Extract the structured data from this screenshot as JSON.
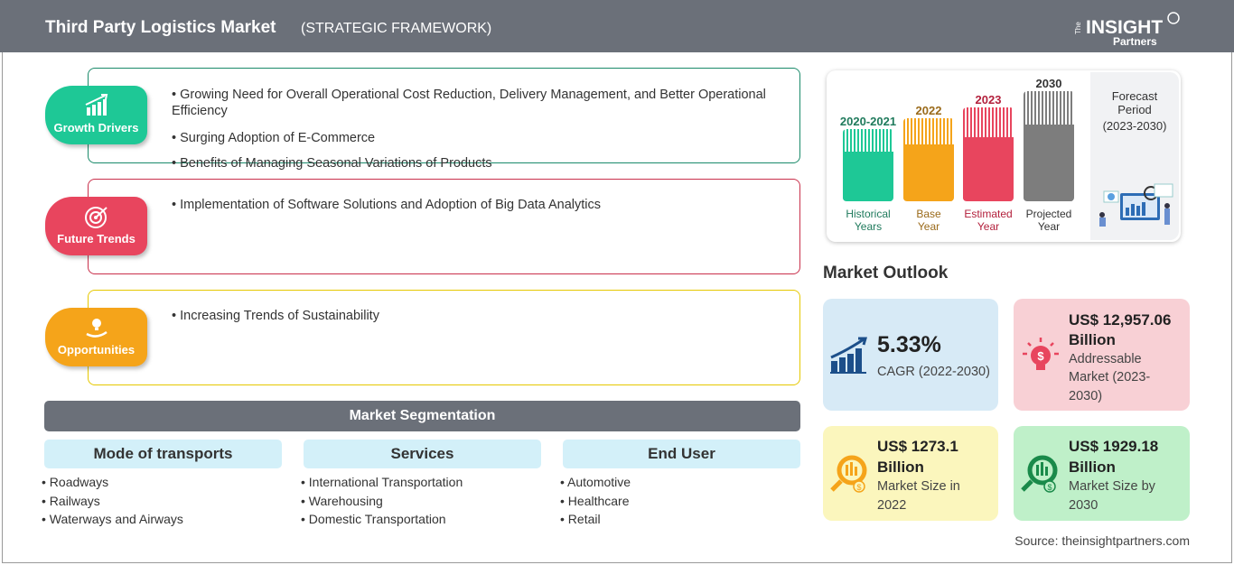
{
  "header": {
    "title": "Third Party Logistics Market",
    "subtitle": "(STRATEGIC FRAMEWORK)",
    "logo": "The INSIGHT Partners"
  },
  "framework": [
    {
      "label": "Growth Drivers",
      "icon": "growth-chart-icon",
      "color": "#1ec896",
      "border": "#1a8a6a",
      "items": [
        "Growing Need for Overall Operational Cost Reduction, Delivery Management, and Better Operational Efficiency",
        "Surging Adoption of E-Commerce",
        "Benefits of Managing Seasonal Variations of Products"
      ]
    },
    {
      "label": "Future Trends",
      "icon": "target-icon",
      "color": "#e8455e",
      "border": "#c9304b",
      "items": [
        "Implementation of Software Solutions and Adoption of Big Data Analytics"
      ]
    },
    {
      "label": "Opportunities",
      "icon": "lightbulb-hand-icon",
      "color": "#f5a41a",
      "border": "#e6c800",
      "items": [
        "Increasing Trends of Sustainability"
      ]
    }
  ],
  "segmentation": {
    "title": "Market Segmentation",
    "columns": [
      {
        "title": "Mode of transports",
        "items": [
          "Roadways",
          "Railways",
          "Waterways and Airways"
        ]
      },
      {
        "title": "Services",
        "items": [
          "International Transportation",
          "Warehousing",
          "Domestic Transportation"
        ]
      },
      {
        "title": "End User",
        "items": [
          "Automotive",
          "Healthcare",
          "Retail"
        ]
      }
    ]
  },
  "timeline": {
    "bars": [
      {
        "year": "2020-2021",
        "label1": "Historical",
        "label2": "Years",
        "color": "#1ec896",
        "text": "#1f7a5c"
      },
      {
        "year": "2022",
        "label1": "Base",
        "label2": "Year",
        "color": "#f5a41a",
        "text": "#9a6a1a"
      },
      {
        "year": "2023",
        "label1": "Estimated",
        "label2": "Year",
        "color": "#e8455e",
        "text": "#b3203c"
      },
      {
        "year": "2030",
        "label1": "Projected",
        "label2": "Year",
        "color": "#7d7d7d",
        "text": "#333"
      }
    ],
    "forecast1": "Forecast",
    "forecast2": "Period",
    "forecast3": "(2023-2030)"
  },
  "outlook": {
    "title": "Market Outlook",
    "cards": [
      {
        "value": "5.33%",
        "desc": "CAGR (2022-2030)",
        "color": "#d7eaf6"
      },
      {
        "value1": "US$ 12,957.06",
        "value2": "Billion",
        "desc1": "Addressable",
        "desc2": "Market (2023-",
        "desc3": "2030)",
        "color": "#f8d0d5"
      },
      {
        "value1": "US$ 1273.1",
        "value2": "Billion",
        "desc1": "Market Size in",
        "desc2": "2022",
        "color": "#fbf6bd"
      },
      {
        "value1": "US$ 1929.18",
        "value2": "Billion",
        "desc1": "Market Size by",
        "desc2": "2030",
        "color": "#bff0c9"
      }
    ]
  },
  "source": "Source: theinsightpartners.com"
}
